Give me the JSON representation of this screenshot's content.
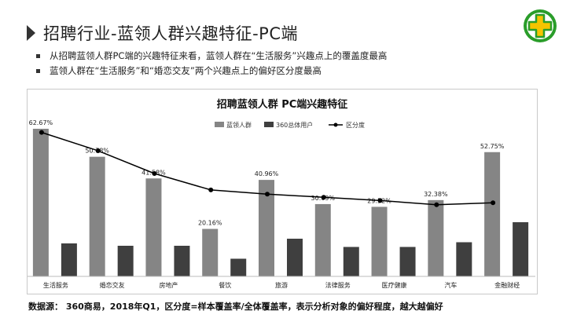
{
  "header": {
    "title": "招聘行业-蓝领人群兴趣特征-PC端"
  },
  "bullets": [
    "从招聘蓝领人群PC端的兴趣特征来看，蓝领人群在“生活服务”兴趣点上的覆盖度最高",
    "蓝领人群在“生活服务”和“婚恋交友”两个兴趣点上的偏好区分度最高"
  ],
  "logo": {
    "icon": "plus-icon",
    "colors": {
      "ring": "#2a9d2a",
      "fill": "#f5c400"
    }
  },
  "chart_data": {
    "type": "bar",
    "title": "招聘蓝领人群 PC端兴趣特征",
    "categories": [
      "生活服务",
      "婚恋交友",
      "房地产",
      "餐饮",
      "旅游",
      "法律服务",
      "医疗健康",
      "汽车",
      "金融财经"
    ],
    "series": [
      {
        "name": "蓝领人群",
        "type": "bar",
        "color": "#858585",
        "values": [
          62.67,
          50.78,
          41.58,
          20.16,
          40.96,
          30.69,
          29.52,
          32.38,
          52.75
        ],
        "labels": [
          "62.67%",
          "50.78%",
          "41.58%",
          "20.16%",
          "40.96%",
          "30.69%",
          "29.52%",
          "32.38%",
          "52.75%"
        ]
      },
      {
        "name": "360总体用户",
        "type": "bar",
        "color": "#3f3f3f",
        "values": [
          14,
          13,
          13,
          7.5,
          16,
          12.5,
          12.5,
          14.5,
          23
        ]
      },
      {
        "name": "区分度",
        "type": "line",
        "color": "#000000",
        "values": [
          4.48,
          3.91,
          3.2,
          2.69,
          2.56,
          2.46,
          2.36,
          2.23,
          2.29
        ]
      }
    ],
    "ylim": [
      0,
      70
    ],
    "grid": false,
    "legend_position": "top-center"
  },
  "footer": {
    "source": "数据源： 360商易，2018年Q1，区分度=样本覆盖率/全体覆盖率，表示分析对象的偏好程度，越大越偏好"
  }
}
